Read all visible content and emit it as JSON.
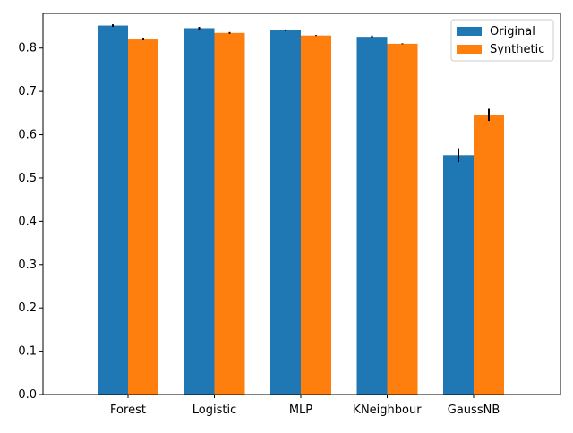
{
  "chart_data": {
    "type": "bar",
    "title": "",
    "xlabel": "",
    "ylabel": "",
    "categories": [
      "Forest",
      "Logistic",
      "MLP",
      "KNeighbour",
      "GaussNB"
    ],
    "ylim": [
      0,
      0.88
    ],
    "yticks": [
      0.0,
      0.1,
      0.2,
      0.3,
      0.4,
      0.5,
      0.6,
      0.7,
      0.8
    ],
    "ytick_labels": [
      "0.0",
      "0.1",
      "0.2",
      "0.3",
      "0.4",
      "0.5",
      "0.6",
      "0.7",
      "0.8"
    ],
    "grid": false,
    "legend_position": "top-right",
    "series": [
      {
        "name": "Original",
        "color": "#1f77b4",
        "values": [
          0.852,
          0.846,
          0.841,
          0.826,
          0.553
        ],
        "errors": [
          0.003,
          0.003,
          0.002,
          0.003,
          0.016
        ]
      },
      {
        "name": "Synthetic",
        "color": "#ff7f0e",
        "values": [
          0.82,
          0.835,
          0.829,
          0.81,
          0.646
        ],
        "errors": [
          0.002,
          0.002,
          0.001,
          0.001,
          0.014
        ]
      }
    ]
  }
}
